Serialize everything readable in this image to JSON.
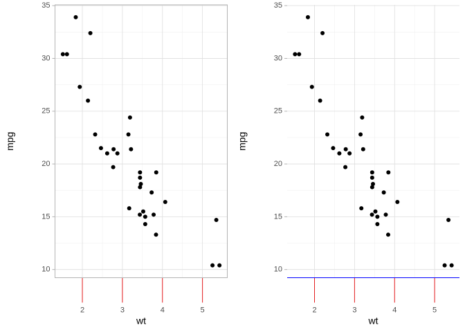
{
  "chart_data": [
    {
      "type": "scatter",
      "xlabel": "wt",
      "ylabel": "mpg",
      "x": [
        2.62,
        2.875,
        2.32,
        3.215,
        3.44,
        3.46,
        3.57,
        3.19,
        3.15,
        3.44,
        3.44,
        4.07,
        3.73,
        3.78,
        5.25,
        5.424,
        5.345,
        2.2,
        1.615,
        1.835,
        2.465,
        3.52,
        3.435,
        3.84,
        3.845,
        1.935,
        2.14,
        1.513,
        3.17,
        2.77,
        3.57,
        2.78
      ],
      "values": [
        21,
        21,
        22.8,
        21.4,
        18.7,
        18.1,
        14.3,
        24.4,
        22.8,
        19.2,
        17.8,
        16.4,
        17.3,
        15.2,
        10.4,
        10.4,
        14.7,
        32.4,
        30.4,
        33.9,
        21.5,
        15.5,
        15.2,
        13.3,
        19.2,
        27.3,
        26,
        30.4,
        15.8,
        19.7,
        15,
        21.4
      ],
      "color": "#000000",
      "xlim": [
        1.317,
        5.62
      ],
      "ylim": [
        9.225,
        35.075
      ],
      "xticks": [
        2,
        3,
        4,
        5
      ],
      "yticks": [
        10,
        15,
        20,
        25,
        30,
        35
      ],
      "grid": true,
      "panel_border": true,
      "x_tick_color": "#e31a1c"
    },
    {
      "type": "scatter",
      "xlabel": "wt",
      "ylabel": "mpg",
      "x": [
        2.62,
        2.875,
        2.32,
        3.215,
        3.44,
        3.46,
        3.57,
        3.19,
        3.15,
        3.44,
        3.44,
        4.07,
        3.73,
        3.78,
        5.25,
        5.424,
        5.345,
        2.2,
        1.615,
        1.835,
        2.465,
        3.52,
        3.435,
        3.84,
        3.845,
        1.935,
        2.14,
        1.513,
        3.17,
        2.77,
        3.57,
        2.78
      ],
      "values": [
        21,
        21,
        22.8,
        21.4,
        18.7,
        18.1,
        14.3,
        24.4,
        22.8,
        19.2,
        17.8,
        16.4,
        17.3,
        15.2,
        10.4,
        10.4,
        14.7,
        32.4,
        30.4,
        33.9,
        21.5,
        15.5,
        15.2,
        13.3,
        19.2,
        27.3,
        26,
        30.4,
        15.8,
        19.7,
        15,
        21.4
      ],
      "color": "#000000",
      "xlim": [
        1.317,
        5.62
      ],
      "ylim": [
        9.225,
        35.075
      ],
      "xticks": [
        2,
        3,
        4,
        5
      ],
      "yticks": [
        10,
        15,
        20,
        25,
        30,
        35
      ],
      "grid": true,
      "panel_border": false,
      "x_tick_color": "#e31a1c",
      "x_axis_line_color": "#0000ff"
    }
  ]
}
